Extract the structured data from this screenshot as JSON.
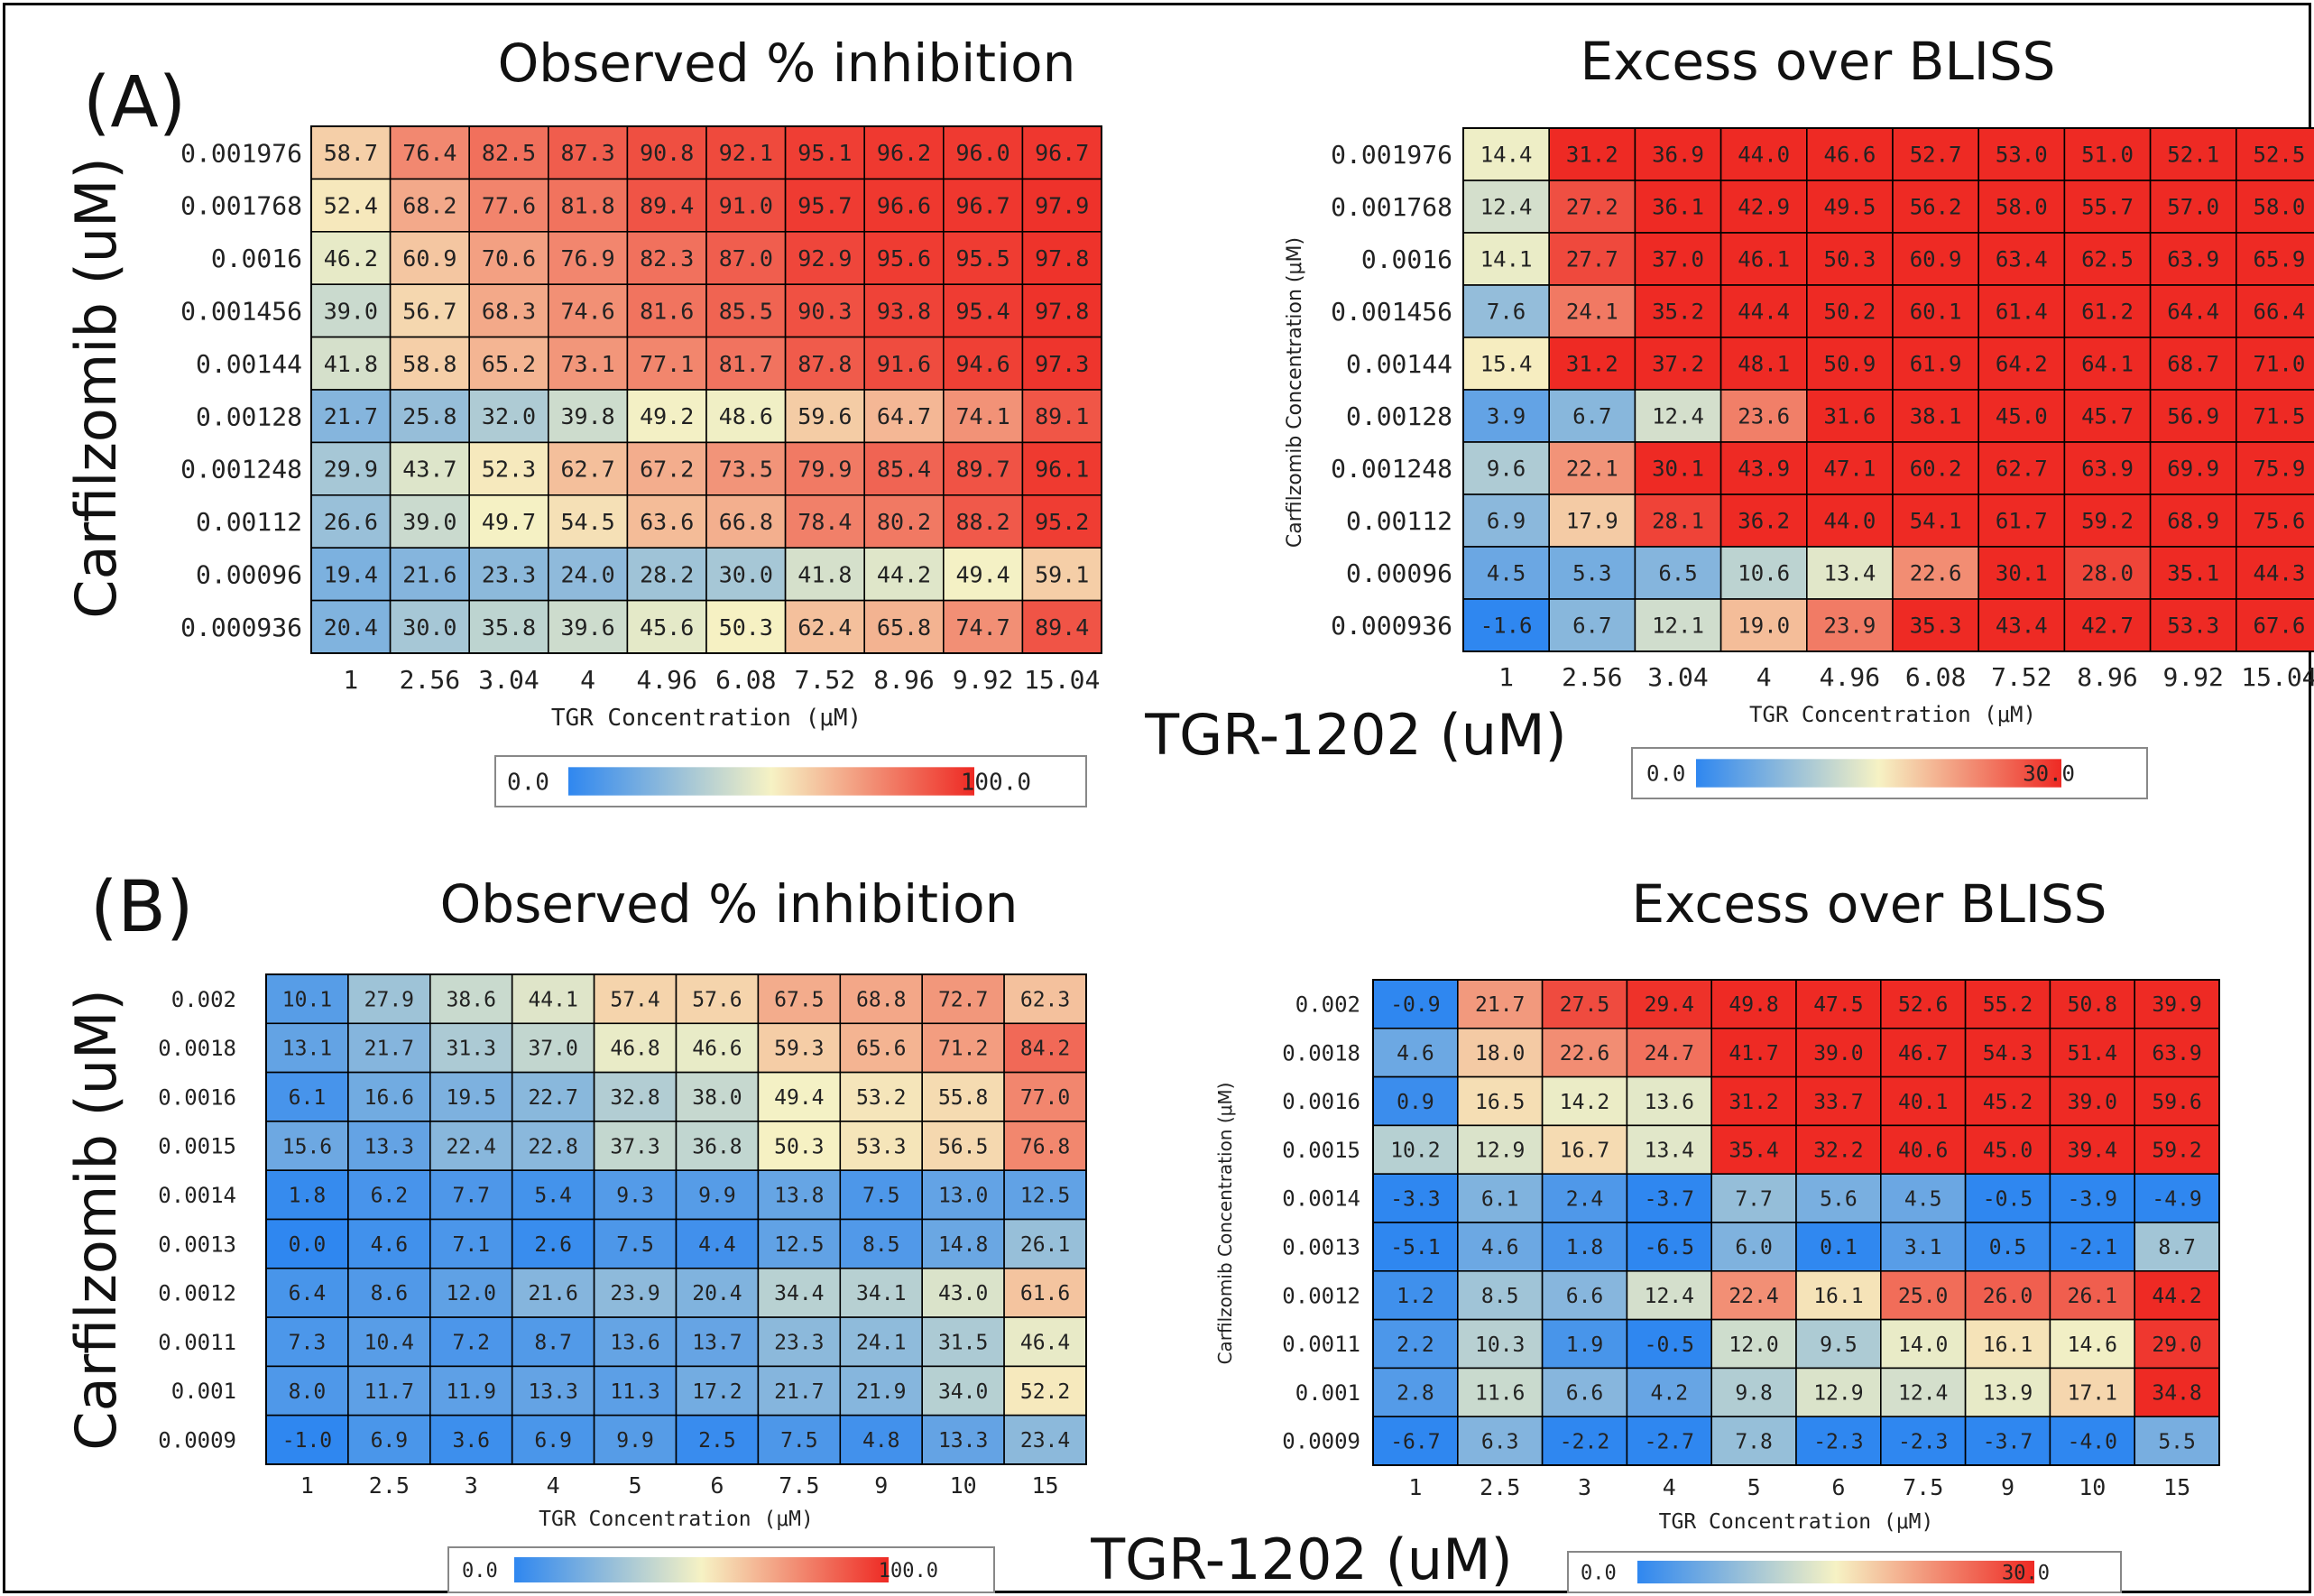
{
  "panel_labels": [
    "(A)",
    "(B)"
  ],
  "shared_labels": {
    "y_a": "Carfilzomib (uM)",
    "y_b": "Carfilzomib (uM)",
    "x_a": "TGR-1202 (uM)",
    "x_b": "TGR-1202 (uM)"
  },
  "colors": {
    "low": "#2f87f0",
    "mid": "#f6f2c4",
    "high": "#ee2a24",
    "grid": "#000000",
    "lowcut": "#3a8ef2"
  },
  "chart_data": [
    {
      "id": "A1",
      "type": "heatmap",
      "title": "Observed % inhibition",
      "xlabel": "TGR Concentration (μM)",
      "ylabel": "",
      "x": [
        "1",
        "2.56",
        "3.04",
        "4",
        "4.96",
        "6.08",
        "7.52",
        "8.96",
        "9.92",
        "15.04"
      ],
      "y": [
        "0.001976",
        "0.001768",
        "0.0016",
        "0.001456",
        "0.00144",
        "0.00128",
        "0.001248",
        "0.00112",
        "0.00096",
        "0.000936"
      ],
      "values": [
        [
          "58.7",
          "76.4",
          "82.5",
          "87.3",
          "90.8",
          "92.1",
          "95.1",
          "96.2",
          "96.0",
          "96.7"
        ],
        [
          "52.4",
          "68.2",
          "77.6",
          "81.8",
          "89.4",
          "91.0",
          "95.7",
          "96.6",
          "96.7",
          "97.9"
        ],
        [
          "46.2",
          "60.9",
          "70.6",
          "76.9",
          "82.3",
          "87.0",
          "92.9",
          "95.6",
          "95.5",
          "97.8"
        ],
        [
          "39.0",
          "56.7",
          "68.3",
          "74.6",
          "81.6",
          "85.5",
          "90.3",
          "93.8",
          "95.4",
          "97.8"
        ],
        [
          "41.8",
          "58.8",
          "65.2",
          "73.1",
          "77.1",
          "81.7",
          "87.8",
          "91.6",
          "94.6",
          "97.3"
        ],
        [
          "21.7",
          "25.8",
          "32.0",
          "39.8",
          "49.2",
          "48.6",
          "59.6",
          "64.7",
          "74.1",
          "89.1"
        ],
        [
          "29.9",
          "43.7",
          "52.3",
          "62.7",
          "67.2",
          "73.5",
          "79.9",
          "85.4",
          "89.7",
          "96.1"
        ],
        [
          "26.6",
          "39.0",
          "49.7",
          "54.5",
          "63.6",
          "66.8",
          "78.4",
          "80.2",
          "88.2",
          "95.2"
        ],
        [
          "19.4",
          "21.6",
          "23.3",
          "24.0",
          "28.2",
          "30.0",
          "41.8",
          "44.2",
          "49.4",
          "59.1"
        ],
        [
          "20.4",
          "30.0",
          "35.8",
          "39.6",
          "45.6",
          "50.3",
          "62.4",
          "65.8",
          "74.7",
          "89.4"
        ]
      ],
      "color_scale": {
        "min": "0.0",
        "max": "100.0",
        "low": "#2f87f0",
        "mid": "#f6f2c4",
        "high": "#ee2a24"
      }
    },
    {
      "id": "A2",
      "type": "heatmap",
      "title": "Excess over BLISS",
      "xlabel": "TGR Concentration (μM)",
      "ylabel": "Carfilzomib Concentration (μM)",
      "x": [
        "1",
        "2.56",
        "3.04",
        "4",
        "4.96",
        "6.08",
        "7.52",
        "8.96",
        "9.92",
        "15.04"
      ],
      "y": [
        "0.001976",
        "0.001768",
        "0.0016",
        "0.001456",
        "0.00144",
        "0.00128",
        "0.001248",
        "0.00112",
        "0.00096",
        "0.000936"
      ],
      "values": [
        [
          "14.4",
          "31.2",
          "36.9",
          "44.0",
          "46.6",
          "52.7",
          "53.0",
          "51.0",
          "52.1",
          "52.5"
        ],
        [
          "12.4",
          "27.2",
          "36.1",
          "42.9",
          "49.5",
          "56.2",
          "58.0",
          "55.7",
          "57.0",
          "58.0"
        ],
        [
          "14.1",
          "27.7",
          "37.0",
          "46.1",
          "50.3",
          "60.9",
          "63.4",
          "62.5",
          "63.9",
          "65.9"
        ],
        [
          "7.6",
          "24.1",
          "35.2",
          "44.4",
          "50.2",
          "60.1",
          "61.4",
          "61.2",
          "64.4",
          "66.4"
        ],
        [
          "15.4",
          "31.2",
          "37.2",
          "48.1",
          "50.9",
          "61.9",
          "64.2",
          "64.1",
          "68.7",
          "71.0"
        ],
        [
          "3.9",
          "6.7",
          "12.4",
          "23.6",
          "31.6",
          "38.1",
          "45.0",
          "45.7",
          "56.9",
          "71.5"
        ],
        [
          "9.6",
          "22.1",
          "30.1",
          "43.9",
          "47.1",
          "60.2",
          "62.7",
          "63.9",
          "69.9",
          "75.9"
        ],
        [
          "6.9",
          "17.9",
          "28.1",
          "36.2",
          "44.0",
          "54.1",
          "61.7",
          "59.2",
          "68.9",
          "75.6"
        ],
        [
          "4.5",
          "5.3",
          "6.5",
          "10.6",
          "13.4",
          "22.6",
          "30.1",
          "28.0",
          "35.1",
          "44.3"
        ],
        [
          "-1.6",
          "6.7",
          "12.1",
          "19.0",
          "23.9",
          "35.3",
          "43.4",
          "42.7",
          "53.3",
          "67.6"
        ]
      ],
      "color_scale": {
        "min": "0.0",
        "max": "30.0",
        "low": "#2f87f0",
        "mid": "#f6f2c4",
        "high": "#ee2a24"
      }
    },
    {
      "id": "B1",
      "type": "heatmap",
      "title": "Observed % inhibition",
      "xlabel": "TGR Concentration (μM)",
      "ylabel": "",
      "x": [
        "1",
        "2.5",
        "3",
        "4",
        "5",
        "6",
        "7.5",
        "9",
        "10",
        "15"
      ],
      "y": [
        "0.002",
        "0.0018",
        "0.0016",
        "0.0015",
        "0.0014",
        "0.0013",
        "0.0012",
        "0.0011",
        "0.001",
        "0.0009"
      ],
      "values": [
        [
          "10.1",
          "27.9",
          "38.6",
          "44.1",
          "57.4",
          "57.6",
          "67.5",
          "68.8",
          "72.7",
          "62.3"
        ],
        [
          "13.1",
          "21.7",
          "31.3",
          "37.0",
          "46.8",
          "46.6",
          "59.3",
          "65.6",
          "71.2",
          "84.2"
        ],
        [
          "6.1",
          "16.6",
          "19.5",
          "22.7",
          "32.8",
          "38.0",
          "49.4",
          "53.2",
          "55.8",
          "77.0"
        ],
        [
          "15.6",
          "13.3",
          "22.4",
          "22.8",
          "37.3",
          "36.8",
          "50.3",
          "53.3",
          "56.5",
          "76.8"
        ],
        [
          "1.8",
          "6.2",
          "7.7",
          "5.4",
          "9.3",
          "9.9",
          "13.8",
          "7.5",
          "13.0",
          "12.5"
        ],
        [
          "0.0",
          "4.6",
          "7.1",
          "2.6",
          "7.5",
          "4.4",
          "12.5",
          "8.5",
          "14.8",
          "26.1"
        ],
        [
          "6.4",
          "8.6",
          "12.0",
          "21.6",
          "23.9",
          "20.4",
          "34.4",
          "34.1",
          "43.0",
          "61.6"
        ],
        [
          "7.3",
          "10.4",
          "7.2",
          "8.7",
          "13.6",
          "13.7",
          "23.3",
          "24.1",
          "31.5",
          "46.4"
        ],
        [
          "8.0",
          "11.7",
          "11.9",
          "13.3",
          "11.3",
          "17.2",
          "21.7",
          "21.9",
          "34.0",
          "52.2"
        ],
        [
          "-1.0",
          "6.9",
          "3.6",
          "6.9",
          "9.9",
          "2.5",
          "7.5",
          "4.8",
          "13.3",
          "23.4"
        ]
      ],
      "color_scale": {
        "min": "0.0",
        "max": "100.0",
        "low": "#2f87f0",
        "mid": "#f6f2c4",
        "high": "#ee2a24"
      }
    },
    {
      "id": "B2",
      "type": "heatmap",
      "title": "Excess over BLISS",
      "xlabel": "TGR Concentration (μM)",
      "ylabel": "Carfilzomib Concentration (μM)",
      "x": [
        "1",
        "2.5",
        "3",
        "4",
        "5",
        "6",
        "7.5",
        "9",
        "10",
        "15"
      ],
      "y": [
        "0.002",
        "0.0018",
        "0.0016",
        "0.0015",
        "0.0014",
        "0.0013",
        "0.0012",
        "0.0011",
        "0.001",
        "0.0009"
      ],
      "values": [
        [
          "-0.9",
          "21.7",
          "27.5",
          "29.4",
          "49.8",
          "47.5",
          "52.6",
          "55.2",
          "50.8",
          "39.9"
        ],
        [
          "4.6",
          "18.0",
          "22.6",
          "24.7",
          "41.7",
          "39.0",
          "46.7",
          "54.3",
          "51.4",
          "63.9"
        ],
        [
          "0.9",
          "16.5",
          "14.2",
          "13.6",
          "31.2",
          "33.7",
          "40.1",
          "45.2",
          "39.0",
          "59.6"
        ],
        [
          "10.2",
          "12.9",
          "16.7",
          "13.4",
          "35.4",
          "32.2",
          "40.6",
          "45.0",
          "39.4",
          "59.2"
        ],
        [
          "-3.3",
          "6.1",
          "2.4",
          "-3.7",
          "7.7",
          "5.6",
          "4.5",
          "-0.5",
          "-3.9",
          "-4.9"
        ],
        [
          "-5.1",
          "4.6",
          "1.8",
          "-6.5",
          "6.0",
          "0.1",
          "3.1",
          "0.5",
          "-2.1",
          "8.7"
        ],
        [
          "1.2",
          "8.5",
          "6.6",
          "12.4",
          "22.4",
          "16.1",
          "25.0",
          "26.0",
          "26.1",
          "44.2"
        ],
        [
          "2.2",
          "10.3",
          "1.9",
          "-0.5",
          "12.0",
          "9.5",
          "14.0",
          "16.1",
          "14.6",
          "29.0"
        ],
        [
          "2.8",
          "11.6",
          "6.6",
          "4.2",
          "9.8",
          "12.9",
          "12.4",
          "13.9",
          "17.1",
          "34.8"
        ],
        [
          "-6.7",
          "6.3",
          "-2.2",
          "-2.7",
          "7.8",
          "-2.3",
          "-2.3",
          "-3.7",
          "-4.0",
          "5.5"
        ]
      ],
      "color_scale": {
        "min": "0.0",
        "max": "30.0",
        "low": "#2f87f0",
        "mid": "#f6f2c4",
        "high": "#ee2a24"
      }
    }
  ]
}
